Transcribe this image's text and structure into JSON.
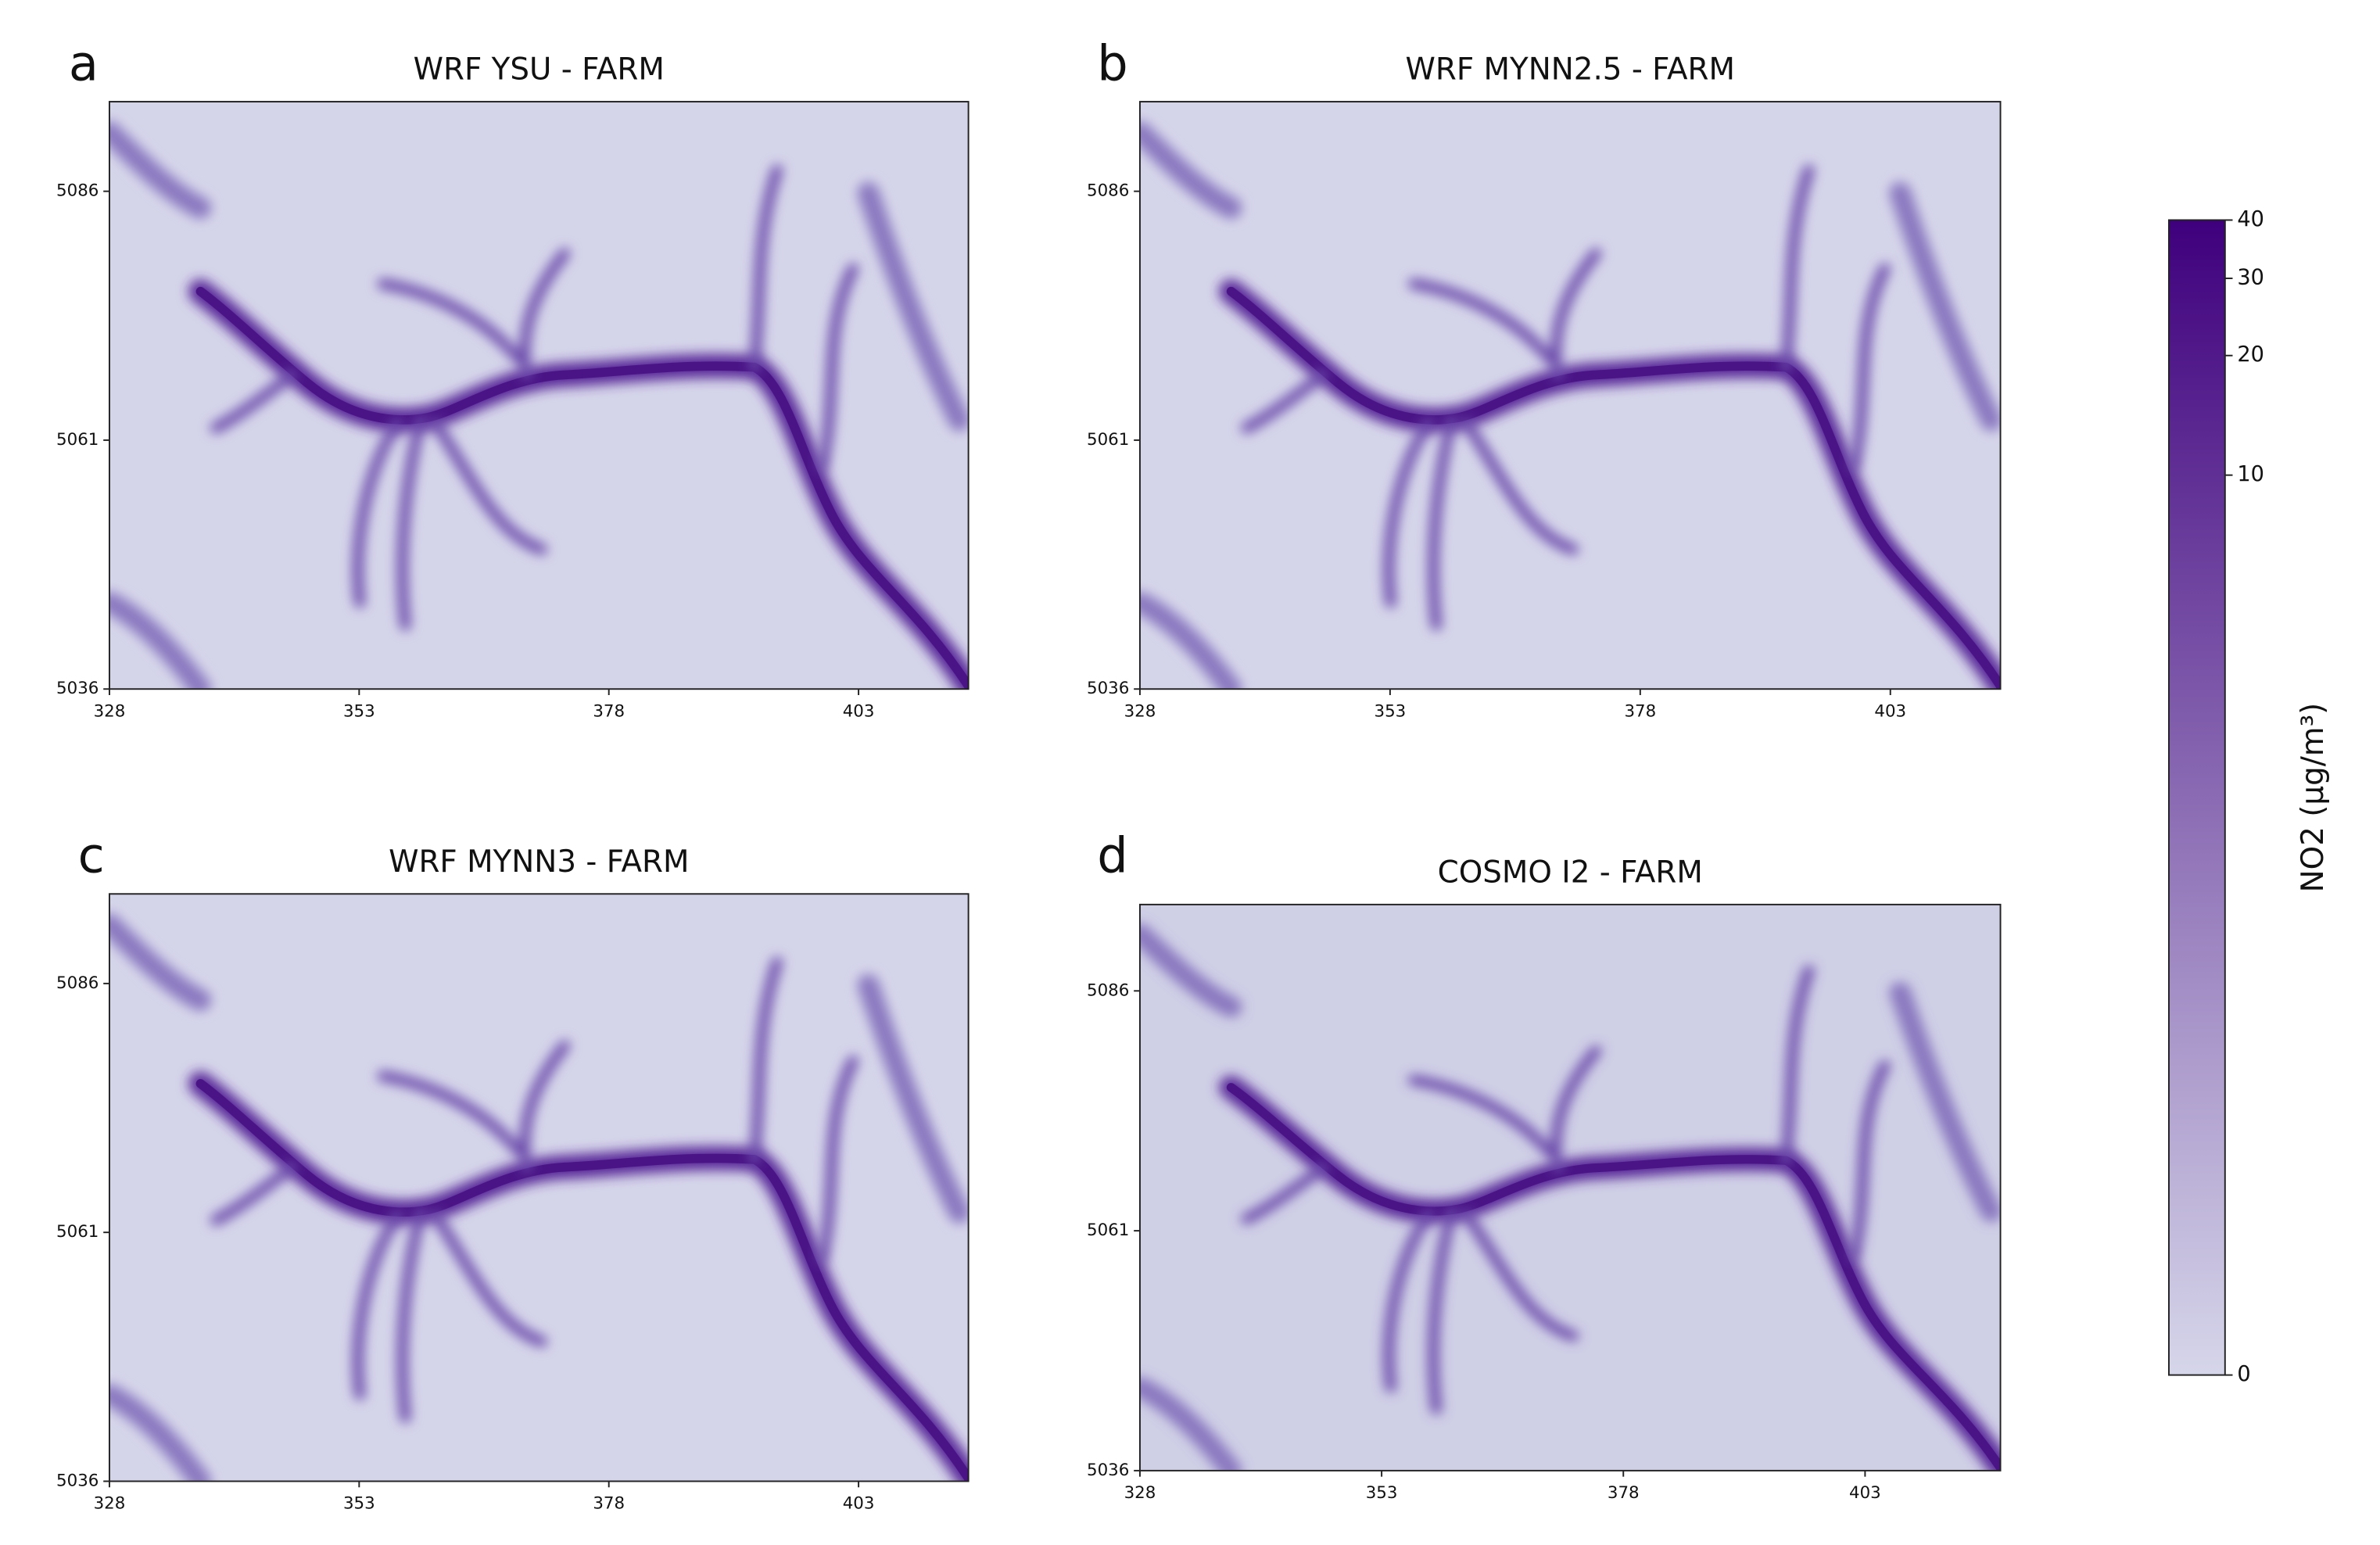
{
  "chart_data": [
    {
      "type": "heatmap",
      "panel": "a",
      "title": "WRF YSU - FARM",
      "xlim": [
        328,
        414
      ],
      "ylim": [
        5036,
        5095
      ],
      "xticks": [
        328,
        353,
        378,
        403
      ],
      "yticks": [
        5036,
        5061,
        5086
      ]
    },
    {
      "type": "heatmap",
      "panel": "b",
      "title": "WRF MYNN2.5 - FARM",
      "xlim": [
        328,
        414
      ],
      "ylim": [
        5036,
        5095
      ],
      "xticks": [
        328,
        353,
        378,
        403
      ],
      "yticks": [
        5036,
        5061,
        5086
      ]
    },
    {
      "type": "heatmap",
      "panel": "c",
      "title": "WRF MYNN3 - FARM",
      "xlim": [
        328,
        414
      ],
      "ylim": [
        5036,
        5095
      ],
      "xticks": [
        328,
        353,
        378,
        403
      ],
      "yticks": [
        5036,
        5061,
        5086
      ]
    },
    {
      "type": "heatmap",
      "panel": "d",
      "title": "COSMO I2 - FARM",
      "xlim": [
        328,
        417
      ],
      "ylim": [
        5036,
        5095
      ],
      "xticks": [
        328,
        353,
        378,
        403
      ],
      "yticks": [
        5036,
        5061,
        5086
      ]
    },
    {
      "type": "colorbar",
      "label": "NO2 (µg/m³)",
      "scale": "power",
      "exponent": 0.18,
      "ylim": [
        0,
        40
      ],
      "yticks": [
        0,
        10,
        20,
        30,
        40
      ],
      "colors": [
        "#d6d6ea",
        "#3f007d"
      ]
    }
  ]
}
